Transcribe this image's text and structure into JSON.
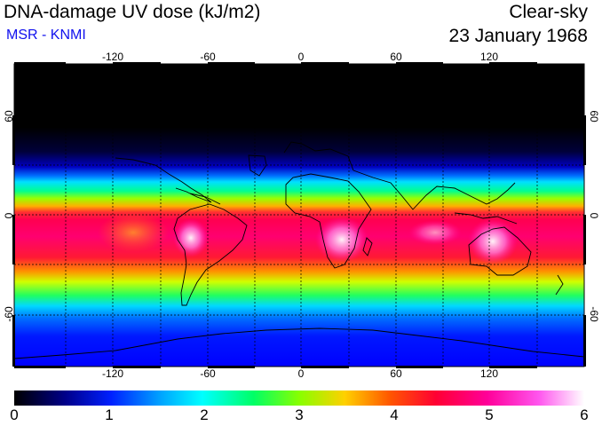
{
  "header": {
    "title": "DNA-damage UV dose (kJ/m2)",
    "source": "MSR - KNMI",
    "sky_condition": "Clear-sky",
    "date": "23 January 1968"
  },
  "map": {
    "longitude_labels": [
      "-120",
      "-60",
      "0",
      "60",
      "120"
    ],
    "latitude_labels": [
      "60",
      "0",
      "-60"
    ],
    "longitude_values": [
      -120,
      -60,
      0,
      60,
      120
    ],
    "latitude_values": [
      60,
      0,
      -60
    ]
  },
  "colorbar": {
    "labels": [
      "0",
      "1",
      "2",
      "3",
      "4",
      "5",
      "6"
    ],
    "min": 0,
    "max": 6,
    "colors": [
      "#000000",
      "#0000aa",
      "#0050ff",
      "#00ddff",
      "#00f080",
      "#40ff00",
      "#e0ff00",
      "#ff9900",
      "#ff0033",
      "#ff0099",
      "#ff55ee",
      "#ffffff"
    ]
  }
}
